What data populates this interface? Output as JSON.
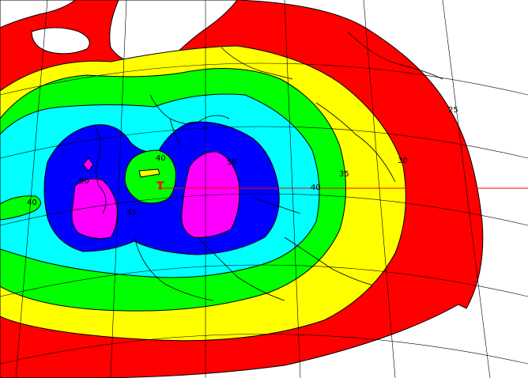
{
  "map": {
    "colors": {
      "red": "#ff0000",
      "yellow": "#ffff00",
      "green": "#00ff00",
      "cyan": "#00ffff",
      "blue": "#0000ff",
      "magenta": "#ff00ff",
      "land": "#ffffff",
      "contour_line": "#000000",
      "coastline": "#000000"
    },
    "transmitter_marker": "T",
    "contour_labels": [
      {
        "id": "west-40",
        "text": "40"
      },
      {
        "id": "center-40",
        "text": "40"
      },
      {
        "id": "west-50",
        "text": "50"
      },
      {
        "id": "east-50",
        "text": "50"
      },
      {
        "id": "center-45",
        "text": "45"
      },
      {
        "id": "east-40",
        "text": "40"
      },
      {
        "id": "east-35",
        "text": "35"
      },
      {
        "id": "east-30",
        "text": "30"
      },
      {
        "id": "east-25",
        "text": "25"
      }
    ]
  }
}
